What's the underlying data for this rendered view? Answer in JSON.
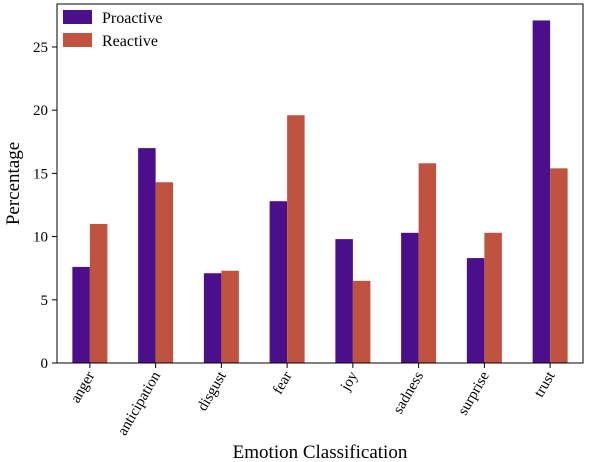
{
  "chart_data": {
    "type": "bar",
    "xlabel": "Emotion Classification",
    "ylabel": "Percentage",
    "categories": [
      "anger",
      "anticipation",
      "disgust",
      "fear",
      "joy",
      "sadness",
      "surprise",
      "trust"
    ],
    "series": [
      {
        "name": "Proactive",
        "color": "#4b0f8c",
        "values": [
          7.6,
          17.0,
          7.1,
          12.8,
          9.8,
          10.3,
          8.3,
          27.1
        ]
      },
      {
        "name": "Reactive",
        "color": "#c0533f",
        "values": [
          11.0,
          14.3,
          7.3,
          19.6,
          6.5,
          15.8,
          10.3,
          15.4
        ]
      }
    ],
    "yticks": [
      0,
      5,
      10,
      15,
      20,
      25
    ],
    "ylim": [
      0,
      28.4
    ],
    "grid": false,
    "legend_position": "top-left"
  }
}
